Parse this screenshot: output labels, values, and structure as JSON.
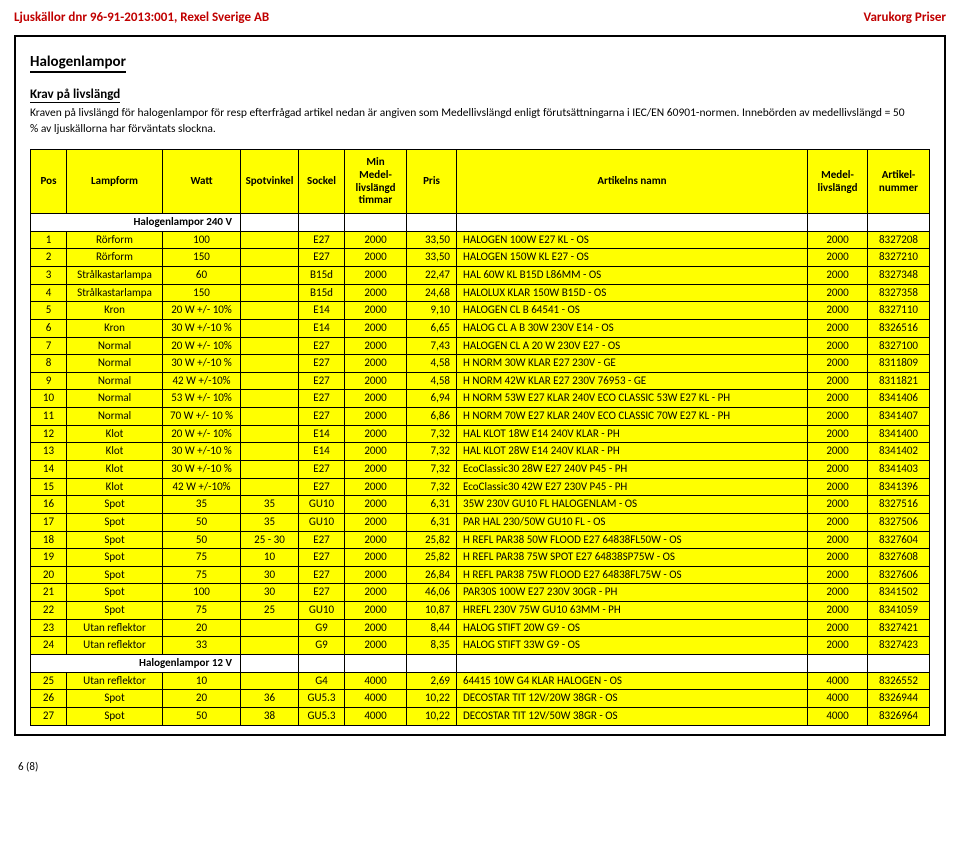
{
  "header": {
    "left": "Ljuskällor dnr 96-91-2013:001, Rexel Sverige AB",
    "right": "Varukorg Priser"
  },
  "section_title": "Halogenlampor",
  "krav": {
    "title": "Krav på livslängd",
    "text": "Kraven på livslängd för halogenlampor för resp efterfrågad artikel nedan är angiven som Medellivslängd enligt förutsättningarna i IEC/EN 60901-normen. Innebörden av medellivslängd = 50 % av ljuskällorna har förväntats slockna."
  },
  "columns": [
    "Pos",
    "Lampform",
    "Watt",
    "Spotvinkel",
    "Sockel",
    "Min Medel-livslängd timmar",
    "Pris",
    "Artikelns namn",
    "Medel-livslängd",
    "Artikel-nummer"
  ],
  "groups": [
    {
      "label": "Halogenlampor 240 V",
      "rows": [
        {
          "pos": "1",
          "lamp": "Rörform",
          "watt": "100",
          "spot": "",
          "sockel": "E27",
          "min": "2000",
          "pris": "33,50",
          "namn": "HALOGEN 100W E27 KL - OS",
          "ml": "2000",
          "art": "8327208"
        },
        {
          "pos": "2",
          "lamp": "Rörform",
          "watt": "150",
          "spot": "",
          "sockel": "E27",
          "min": "2000",
          "pris": "33,50",
          "namn": "HALOGEN  150W KL E27 - OS",
          "ml": "2000",
          "art": "8327210"
        },
        {
          "pos": "3",
          "lamp": "Strålkastarlampa",
          "watt": "60",
          "spot": "",
          "sockel": "B15d",
          "min": "2000",
          "pris": "22,47",
          "namn": "HAL 60W KL B15D L86MM - OS",
          "ml": "2000",
          "art": "8327348"
        },
        {
          "pos": "4",
          "lamp": "Strålkastarlampa",
          "watt": "150",
          "spot": "",
          "sockel": "B15d",
          "min": "2000",
          "pris": "24,68",
          "namn": "HALOLUX KLAR 150W B15D - OS",
          "ml": "2000",
          "art": "8327358"
        },
        {
          "pos": "5",
          "lamp": "Kron",
          "watt": "20 W +/- 10%",
          "spot": "",
          "sockel": "E14",
          "min": "2000",
          "pris": "9,10",
          "namn": "HALOGEN CL B 64541 - OS",
          "ml": "2000",
          "art": "8327110"
        },
        {
          "pos": "6",
          "lamp": "Kron",
          "watt": "30 W +/-10 %",
          "spot": "",
          "sockel": "E14",
          "min": "2000",
          "pris": "6,65",
          "namn": "HALOG CL A B 30W 230V E14 - OS",
          "ml": "2000",
          "art": "8326516"
        },
        {
          "pos": "7",
          "lamp": "Normal",
          "watt": "20 W +/- 10%",
          "spot": "",
          "sockel": "E27",
          "min": "2000",
          "pris": "7,43",
          "namn": "HALOGEN CL A 20 W 230V E27 - OS",
          "ml": "2000",
          "art": "8327100"
        },
        {
          "pos": "8",
          "lamp": "Normal",
          "watt": "30 W +/-10 %",
          "spot": "",
          "sockel": "E27",
          "min": "2000",
          "pris": "4,58",
          "namn": "H NORM 30W KLAR E27 230V - GE",
          "ml": "2000",
          "art": "8311809"
        },
        {
          "pos": "9",
          "lamp": "Normal",
          "watt": "42 W +/-10%",
          "spot": "",
          "sockel": "E27",
          "min": "2000",
          "pris": "4,58",
          "namn": "H NORM 42W KLAR E27 230V 76953  - GE",
          "ml": "2000",
          "art": "8311821"
        },
        {
          "pos": "10",
          "lamp": "Normal",
          "watt": "53 W +/- 10%",
          "spot": "",
          "sockel": "E27",
          "min": "2000",
          "pris": "6,94",
          "namn": "H NORM 53W E27 KLAR 240V  ECO CLASSIC 53W E27 KL - PH",
          "ml": "2000",
          "art": "8341406"
        },
        {
          "pos": "11",
          "lamp": "Normal",
          "watt": "70 W +/- 10 %",
          "spot": "",
          "sockel": "E27",
          "min": "2000",
          "pris": "6,86",
          "namn": "H NORM 70W E27 KLAR 240V  ECO CLASSIC 70W E27 KL - PH",
          "ml": "2000",
          "art": "8341407"
        },
        {
          "pos": "12",
          "lamp": "Klot",
          "watt": "20 W +/- 10%",
          "spot": "",
          "sockel": "E14",
          "min": "2000",
          "pris": "7,32",
          "namn": "HAL KLOT 18W E14 240V KLAR - PH",
          "ml": "2000",
          "art": "8341400"
        },
        {
          "pos": "13",
          "lamp": "Klot",
          "watt": "30 W +/-10 %",
          "spot": "",
          "sockel": "E14",
          "min": "2000",
          "pris": "7,32",
          "namn": "HAL KLOT 28W E14 240V KLAR - PH",
          "ml": "2000",
          "art": "8341402"
        },
        {
          "pos": "14",
          "lamp": "Klot",
          "watt": "30 W +/-10 %",
          "spot": "",
          "sockel": "E27",
          "min": "2000",
          "pris": "7,32",
          "namn": "EcoClassic30 28W E27 240V P45 - PH",
          "ml": "2000",
          "art": "8341403"
        },
        {
          "pos": "15",
          "lamp": "Klot",
          "watt": "42 W +/-10%",
          "spot": "",
          "sockel": "E27",
          "min": "2000",
          "pris": "7,32",
          "namn": "EcoClassic30 42W E27 230V P45 - PH",
          "ml": "2000",
          "art": "8341396"
        },
        {
          "pos": "16",
          "lamp": "Spot",
          "watt": "35",
          "spot": "35",
          "sockel": "GU10",
          "min": "2000",
          "pris": "6,31",
          "namn": "35W 230V GU10 FL HALOGENLAM - OS",
          "ml": "2000",
          "art": "8327516"
        },
        {
          "pos": "17",
          "lamp": "Spot",
          "watt": "50",
          "spot": "35",
          "sockel": "GU10",
          "min": "2000",
          "pris": "6,31",
          "namn": "PAR HAL 230/50W GU10 FL - OS",
          "ml": "2000",
          "art": "8327506"
        },
        {
          "pos": "18",
          "lamp": "Spot",
          "watt": "50",
          "spot": "25 - 30",
          "sockel": "E27",
          "min": "2000",
          "pris": "25,82",
          "namn": "H REFL PAR38 50W FLOOD E27 64838FL50W - OS",
          "ml": "2000",
          "art": "8327604"
        },
        {
          "pos": "19",
          "lamp": "Spot",
          "watt": "75",
          "spot": "10",
          "sockel": "E27",
          "min": "2000",
          "pris": "25,82",
          "namn": "H REFL PAR38 75W SPOT E27 64838SP75W - OS",
          "ml": "2000",
          "art": "8327608"
        },
        {
          "pos": "20",
          "lamp": "Spot",
          "watt": "75",
          "spot": "30",
          "sockel": "E27",
          "min": "2000",
          "pris": "26,84",
          "namn": "H REFL PAR38 75W FLOOD E27 64838FL75W - OS",
          "ml": "2000",
          "art": "8327606"
        },
        {
          "pos": "21",
          "lamp": "Spot",
          "watt": "100",
          "spot": "30",
          "sockel": "E27",
          "min": "2000",
          "pris": "46,06",
          "namn": "PAR30S 100W E27 230V 30GR - PH",
          "ml": "2000",
          "art": "8341502"
        },
        {
          "pos": "22",
          "lamp": "Spot",
          "watt": "75",
          "spot": "25",
          "sockel": "GU10",
          "min": "2000",
          "pris": "10,87",
          "namn": "HREFL 230V 75W GU10 63MM - PH",
          "ml": "2000",
          "art": "8341059"
        },
        {
          "pos": "23",
          "lamp": "Utan reflektor",
          "watt": "20",
          "spot": "",
          "sockel": "G9",
          "min": "2000",
          "pris": "8,44",
          "namn": "HALOG STIFT 20W G9 - OS",
          "ml": "2000",
          "art": "8327421"
        },
        {
          "pos": "24",
          "lamp": "Utan reflektor",
          "watt": "33",
          "spot": "",
          "sockel": "G9",
          "min": "2000",
          "pris": "8,35",
          "namn": "HALOG STIFT 33W G9 - OS",
          "ml": "2000",
          "art": "8327423"
        }
      ]
    },
    {
      "label": "Halogenlampor 12 V",
      "rows": [
        {
          "pos": "25",
          "lamp": "Utan reflektor",
          "watt": "10",
          "spot": "",
          "sockel": "G4",
          "min": "4000",
          "pris": "2,69",
          "namn": "64415 10W G4  KLAR  HALOGEN - OS",
          "ml": "4000",
          "art": "8326552"
        },
        {
          "pos": "26",
          "lamp": "Spot",
          "watt": "20",
          "spot": "36",
          "sockel": "GU5.3",
          "min": "4000",
          "pris": "10,22",
          "namn": "DECOSTAR TIT 12V/20W 38GR - OS",
          "ml": "4000",
          "art": "8326944"
        },
        {
          "pos": "27",
          "lamp": "Spot",
          "watt": "50",
          "spot": "38",
          "sockel": "GU5.3",
          "min": "4000",
          "pris": "10,22",
          "namn": "DECOSTAR TIT 12V/50W 38GR - OS",
          "ml": "4000",
          "art": "8326964"
        }
      ]
    }
  ],
  "footer": "6 (8)"
}
